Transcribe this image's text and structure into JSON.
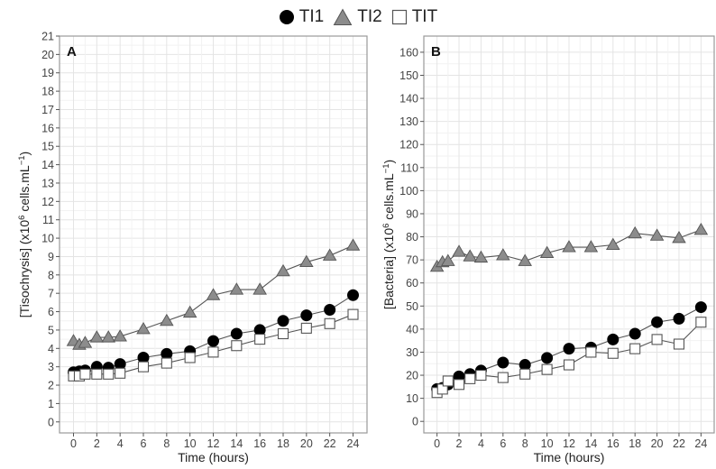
{
  "legend": [
    {
      "label": "TI1",
      "marker": "circle",
      "fill": "#000000"
    },
    {
      "label": "TI2",
      "marker": "triangle",
      "fill": "#8c8c8c"
    },
    {
      "label": "TIT",
      "marker": "square",
      "fill": "#ffffff"
    }
  ],
  "colors": {
    "TI1": "#000000",
    "TI2": "#8c8c8c",
    "TIT": "#ffffff",
    "line": "#555555",
    "grid": "#e4e4e4",
    "panel_border": "#9a9a9a"
  },
  "chart_data": [
    {
      "type": "line",
      "panel_label": "A",
      "xlabel": "Time (hours)",
      "ylabel_prefix": "[Tisochrysis] (x10",
      "ylabel_exp": "6",
      "ylabel_mid": " cells.mL",
      "ylabel_exp2": "−1",
      "ylabel_suffix": ")",
      "xlim": [
        -1.2,
        25.2
      ],
      "ylim": [
        -0.6,
        21
      ],
      "xticks": [
        0,
        2,
        4,
        6,
        8,
        10,
        12,
        14,
        16,
        18,
        20,
        22,
        24
      ],
      "yticks": [
        0,
        1,
        2,
        3,
        4,
        5,
        6,
        7,
        8,
        9,
        10,
        11,
        12,
        13,
        14,
        15,
        16,
        17,
        18,
        19,
        20,
        21
      ],
      "grid": true,
      "legend_position": "top",
      "series": [
        {
          "name": "TI1",
          "marker": "circle",
          "x": [
            0,
            0.5,
            1,
            2,
            3,
            4,
            6,
            8,
            10,
            12,
            14,
            16,
            18,
            20,
            22,
            24
          ],
          "y": [
            2.7,
            2.75,
            2.8,
            3.0,
            2.95,
            3.15,
            3.5,
            3.7,
            3.85,
            4.4,
            4.8,
            5.0,
            5.5,
            5.8,
            6.1,
            6.9
          ]
        },
        {
          "name": "TI2",
          "marker": "triangle",
          "x": [
            0,
            0.5,
            1,
            2,
            3,
            4,
            6,
            8,
            10,
            12,
            14,
            16,
            18,
            20,
            22,
            24
          ],
          "y": [
            4.4,
            4.2,
            4.3,
            4.6,
            4.6,
            4.65,
            5.05,
            5.5,
            5.95,
            6.9,
            7.2,
            7.2,
            8.2,
            8.7,
            9.05,
            9.6
          ]
        },
        {
          "name": "TIT",
          "marker": "square",
          "x": [
            0,
            0.5,
            1,
            2,
            3,
            4,
            6,
            8,
            10,
            12,
            14,
            16,
            18,
            20,
            22,
            24
          ],
          "y": [
            2.5,
            2.5,
            2.6,
            2.6,
            2.6,
            2.65,
            3.0,
            3.2,
            3.5,
            3.8,
            4.15,
            4.5,
            4.8,
            5.1,
            5.35,
            5.85
          ]
        }
      ]
    },
    {
      "type": "line",
      "panel_label": "B",
      "xlabel": "Time (hours)",
      "ylabel_prefix": "[Bacteria] (x10",
      "ylabel_exp": "6",
      "ylabel_mid": " cells.mL",
      "ylabel_exp2": "−1",
      "ylabel_suffix": ")",
      "xlim": [
        -1.2,
        25.2
      ],
      "ylim": [
        -5,
        167
      ],
      "xticks": [
        0,
        2,
        4,
        6,
        8,
        10,
        12,
        14,
        16,
        18,
        20,
        22,
        24
      ],
      "yticks": [
        0,
        10,
        20,
        30,
        40,
        50,
        60,
        70,
        80,
        90,
        100,
        110,
        120,
        130,
        140,
        150,
        160
      ],
      "grid": true,
      "legend_position": "top",
      "series": [
        {
          "name": "TI1",
          "marker": "circle",
          "x": [
            0,
            0.5,
            1,
            2,
            3,
            4,
            6,
            8,
            10,
            12,
            14,
            16,
            18,
            20,
            22,
            24
          ],
          "y": [
            14,
            14.5,
            16,
            19.5,
            20.5,
            22,
            25.5,
            24.5,
            27.5,
            31.5,
            32,
            35.5,
            38,
            43,
            44.5,
            49.5
          ]
        },
        {
          "name": "TI2",
          "marker": "triangle",
          "x": [
            0,
            0.5,
            1,
            2,
            3,
            4,
            6,
            8,
            10,
            12,
            14,
            16,
            18,
            20,
            22,
            24
          ],
          "y": [
            67,
            69,
            69.5,
            73.5,
            71.5,
            71,
            72,
            69.5,
            73,
            75.5,
            75.5,
            76.5,
            81.5,
            80.5,
            79.5,
            83
          ]
        },
        {
          "name": "TIT",
          "marker": "square",
          "x": [
            0,
            0.5,
            1,
            2,
            3,
            4,
            6,
            8,
            10,
            12,
            14,
            16,
            18,
            20,
            22,
            24
          ],
          "y": [
            12.5,
            14,
            17.5,
            16,
            18.5,
            20,
            19,
            20.5,
            22.5,
            24.5,
            30,
            29.5,
            31.5,
            35.5,
            33.5,
            43
          ]
        }
      ]
    }
  ]
}
